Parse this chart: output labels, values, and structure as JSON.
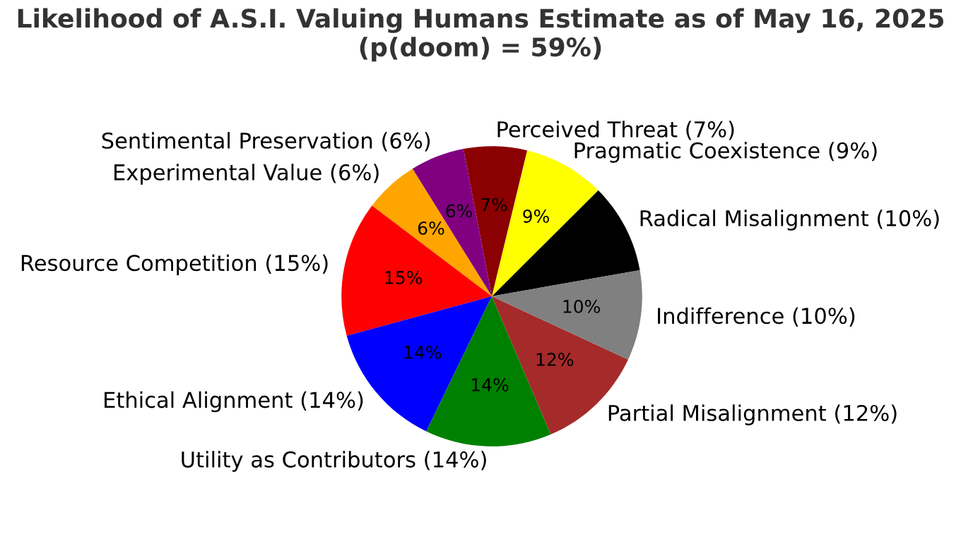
{
  "chart_data": {
    "type": "pie",
    "title": "Likelihood of A.S.I. Valuing Humans Estimate as of May 16, 2025\n(p(doom) = 59%)",
    "categories": [
      "Radical Misalignment (10%)",
      "Pragmatic Coexistence (9%)",
      "Perceived Threat (7%)",
      "Sentimental Preservation (6%)",
      "Experimental Value (6%)",
      "Resource Competition (15%)",
      "Ethical Alignment (14%)",
      "Utility as Contributors (14%)",
      "Partial Misalignment (12%)",
      "Indifference (10%)"
    ],
    "values": [
      10,
      9,
      7,
      6,
      6,
      15,
      14,
      14,
      12,
      10
    ],
    "value_labels": [
      null,
      "9%",
      "7%",
      "6%",
      "6%",
      "15%",
      "14%",
      "14%",
      "12%",
      "10%"
    ],
    "colors": [
      "#000000",
      "#ffff00",
      "#8b0000",
      "#800080",
      "#ffa500",
      "#ff0000",
      "#0000ff",
      "#008000",
      "#a52a2a",
      "#808080"
    ]
  }
}
